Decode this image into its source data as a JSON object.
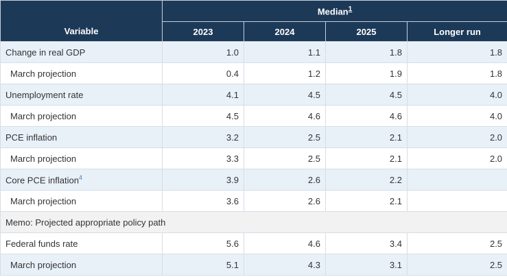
{
  "table": {
    "header": {
      "variable": "Variable",
      "median": "Median",
      "median_footnote": "1",
      "years": [
        "2023",
        "2024",
        "2025",
        "Longer run"
      ]
    },
    "rows": [
      {
        "label": "Change in real GDP",
        "footnote": "",
        "values": [
          "1.0",
          "1.1",
          "1.8",
          "1.8"
        ]
      },
      {
        "label": "March projection",
        "footnote": "",
        "values": [
          "0.4",
          "1.2",
          "1.9",
          "1.8"
        ]
      },
      {
        "label": "Unemployment rate",
        "footnote": "",
        "values": [
          "4.1",
          "4.5",
          "4.5",
          "4.0"
        ]
      },
      {
        "label": "March projection",
        "footnote": "",
        "values": [
          "4.5",
          "4.6",
          "4.6",
          "4.0"
        ]
      },
      {
        "label": "PCE inflation",
        "footnote": "",
        "values": [
          "3.2",
          "2.5",
          "2.1",
          "2.0"
        ]
      },
      {
        "label": "March projection",
        "footnote": "",
        "values": [
          "3.3",
          "2.5",
          "2.1",
          "2.0"
        ]
      },
      {
        "label": "Core PCE inflation",
        "footnote": "4",
        "values": [
          "3.9",
          "2.6",
          "2.2",
          ""
        ]
      },
      {
        "label": "March projection",
        "footnote": "",
        "values": [
          "3.6",
          "2.6",
          "2.1",
          ""
        ]
      },
      {
        "label": "Memo: Projected appropriate policy path",
        "footnote": "",
        "values": []
      },
      {
        "label": "Federal funds rate",
        "footnote": "",
        "values": [
          "5.6",
          "4.6",
          "3.4",
          "2.5"
        ]
      },
      {
        "label": "March projection",
        "footnote": "",
        "values": [
          "5.1",
          "4.3",
          "3.1",
          "2.5"
        ]
      }
    ]
  }
}
